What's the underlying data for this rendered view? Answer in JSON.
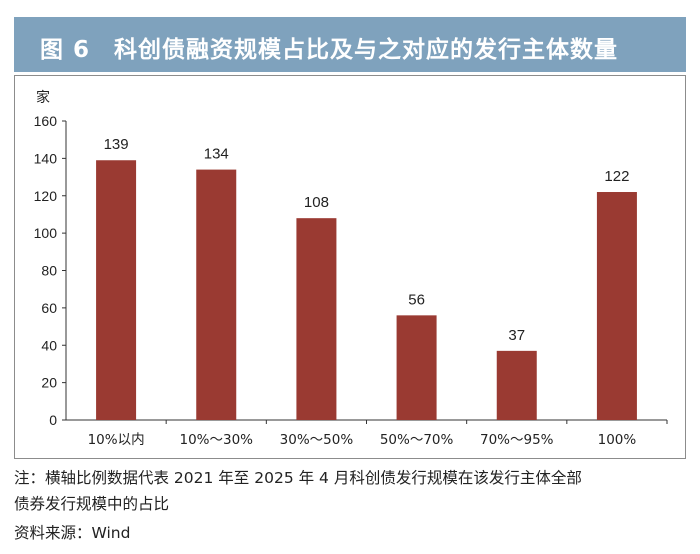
{
  "title": "图 6　科创债融资规模占比及与之对应的发行主体数量",
  "colors": {
    "bar": "#9a3a32",
    "title_bg": "#7fa2bd"
  },
  "chart_data": {
    "type": "bar",
    "title": "图 6　科创债融资规模占比及与之对应的发行主体数量",
    "ylabel": "家",
    "ylim": [
      0,
      160
    ],
    "yticks": [
      0,
      20,
      40,
      60,
      80,
      100,
      120,
      140,
      160
    ],
    "categories": [
      "10%以内",
      "10%～30%",
      "30%～50%",
      "50%～70%",
      "70%～95%",
      "100%"
    ],
    "values": [
      139,
      134,
      108,
      56,
      37,
      122
    ],
    "data_labels": true,
    "grid": false,
    "legend": "none"
  },
  "notes": {
    "line1": "注：横轴比例数据代表 2021 年至 2025 年 4 月科创债发行规模在该发行主体全部",
    "line2": "债券发行规模中的占比",
    "source": "资料来源：Wind"
  }
}
